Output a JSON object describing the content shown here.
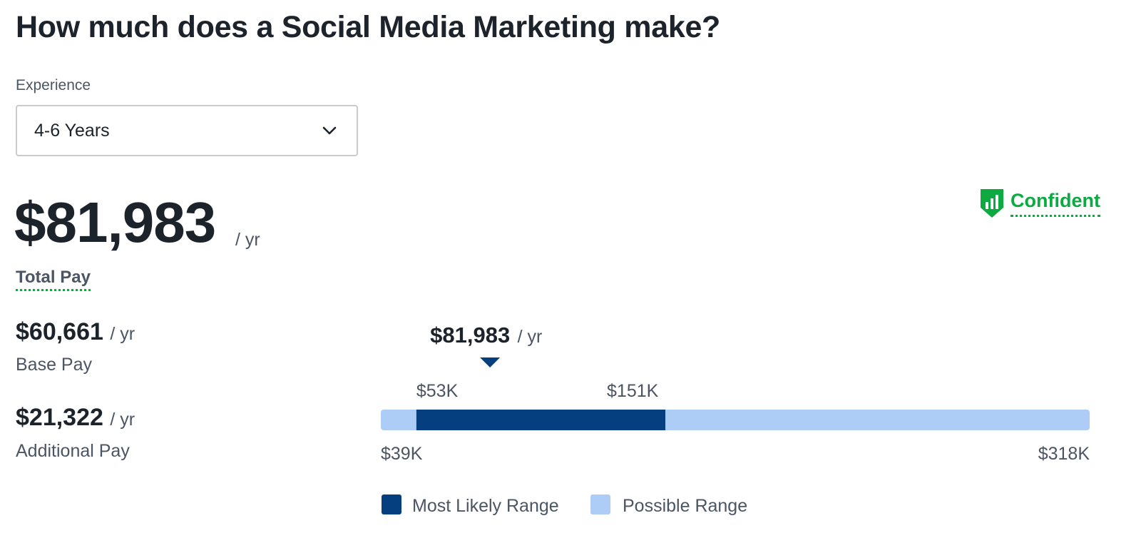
{
  "page": {
    "title": "How much does a Social Media Marketing make?"
  },
  "experience": {
    "label": "Experience",
    "selected": "4-6 Years"
  },
  "total_pay": {
    "amount": "$81,983",
    "unit": "/ yr",
    "label": "Total Pay"
  },
  "confidence": {
    "label": "Confident",
    "icon": "confidence-shield-icon",
    "color": "#0caa41"
  },
  "base_pay": {
    "amount": "$60,661",
    "unit": "/ yr",
    "label": "Base Pay"
  },
  "additional_pay": {
    "amount": "$21,322",
    "unit": "/ yr",
    "label": "Additional Pay"
  },
  "colors": {
    "most_likely": "#063f80",
    "possible": "#aecdf6",
    "text": "#1c232b",
    "muted": "#4b5563",
    "accent_green": "#0caa41"
  },
  "chart_data": {
    "type": "bar",
    "orientation": "horizontal-range",
    "range_min": 39000,
    "range_max": 318000,
    "most_likely": [
      53000,
      151000
    ],
    "marker_value": 81983,
    "marker_label": "$81,983",
    "marker_unit": "/ yr",
    "labels": {
      "most_likely_low": "$53K",
      "most_likely_high": "$151K",
      "possible_low": "$39K",
      "possible_high": "$318K"
    },
    "legend": [
      {
        "name": "Most Likely Range",
        "color": "#063f80"
      },
      {
        "name": "Possible Range",
        "color": "#aecdf6"
      }
    ],
    "legend_position": "bottom-left"
  }
}
